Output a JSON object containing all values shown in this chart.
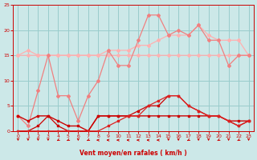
{
  "x": [
    0,
    1,
    2,
    3,
    4,
    5,
    6,
    7,
    8,
    9,
    10,
    11,
    12,
    13,
    14,
    15,
    16,
    17,
    18,
    19,
    20,
    21,
    22,
    23
  ],
  "line_rafale": [
    3,
    1,
    8,
    15,
    7,
    7,
    2,
    7,
    10,
    16,
    13,
    13,
    18,
    23,
    23,
    19,
    20,
    19,
    21,
    18,
    18,
    13,
    15,
    15
  ],
  "line_gust_upper": [
    15,
    15,
    15,
    15,
    15,
    15,
    15,
    15,
    15,
    16,
    16,
    16,
    17,
    17,
    18,
    19,
    19,
    19,
    21,
    19,
    18,
    18,
    18,
    15
  ],
  "line_gust_lower": [
    15,
    16,
    15,
    15,
    15,
    15,
    15,
    15,
    15,
    15,
    15,
    15,
    15,
    15,
    15,
    15,
    15,
    15,
    15,
    15,
    15,
    15,
    15,
    15
  ],
  "line_wind_mean": [
    3,
    2,
    3,
    3,
    2,
    1,
    1,
    0,
    3,
    3,
    3,
    3,
    3,
    3,
    3,
    3,
    3,
    3,
    3,
    3,
    3,
    2,
    2,
    2
  ],
  "line_dark1": [
    0,
    0,
    1,
    3,
    1,
    0,
    0,
    0,
    3,
    3,
    3,
    3,
    4,
    5,
    5,
    7,
    7,
    5,
    4,
    3,
    3,
    2,
    1,
    2
  ],
  "line_dark2": [
    0,
    0,
    0,
    0,
    0,
    0,
    0,
    0,
    0,
    1,
    2,
    3,
    3,
    5,
    6,
    7,
    7,
    5,
    4,
    3,
    3,
    2,
    1,
    2
  ],
  "wind_dir": [
    180,
    180,
    180,
    180,
    225,
    225,
    180,
    225,
    270,
    270,
    270,
    270,
    270,
    270,
    270,
    180,
    180,
    225,
    180,
    180,
    225,
    180,
    225,
    180
  ],
  "ylim": [
    0,
    25
  ],
  "xlim_min": -0.5,
  "xlim_max": 23.5,
  "bg_color": "#cce8e8",
  "grid_color": "#99cccc",
  "color_salmon": "#f08080",
  "color_light_salmon": "#ffb0b0",
  "color_dark_red": "#cc0000",
  "color_red": "#dd2222",
  "xlabel": "Vent moyen/en rafales ( km/h )",
  "xlabel_color": "#cc0000",
  "tick_color": "#cc0000"
}
